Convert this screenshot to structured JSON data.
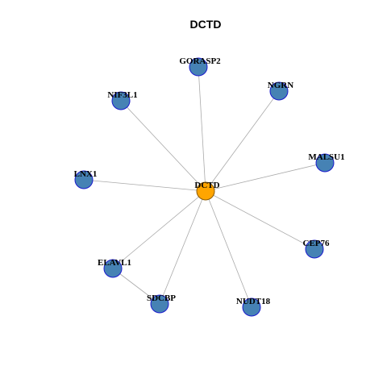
{
  "title": "DCTD",
  "nodes": [
    {
      "label": "DCTD"
    },
    {
      "label": "GORASP2"
    },
    {
      "label": "NGRN"
    },
    {
      "label": "MALSU1"
    },
    {
      "label": "CEP76"
    },
    {
      "label": "NUDT18"
    },
    {
      "label": "SDCBP"
    },
    {
      "label": "ELAVL1"
    },
    {
      "label": "LNX1"
    },
    {
      "label": "NIF3L1"
    }
  ]
}
